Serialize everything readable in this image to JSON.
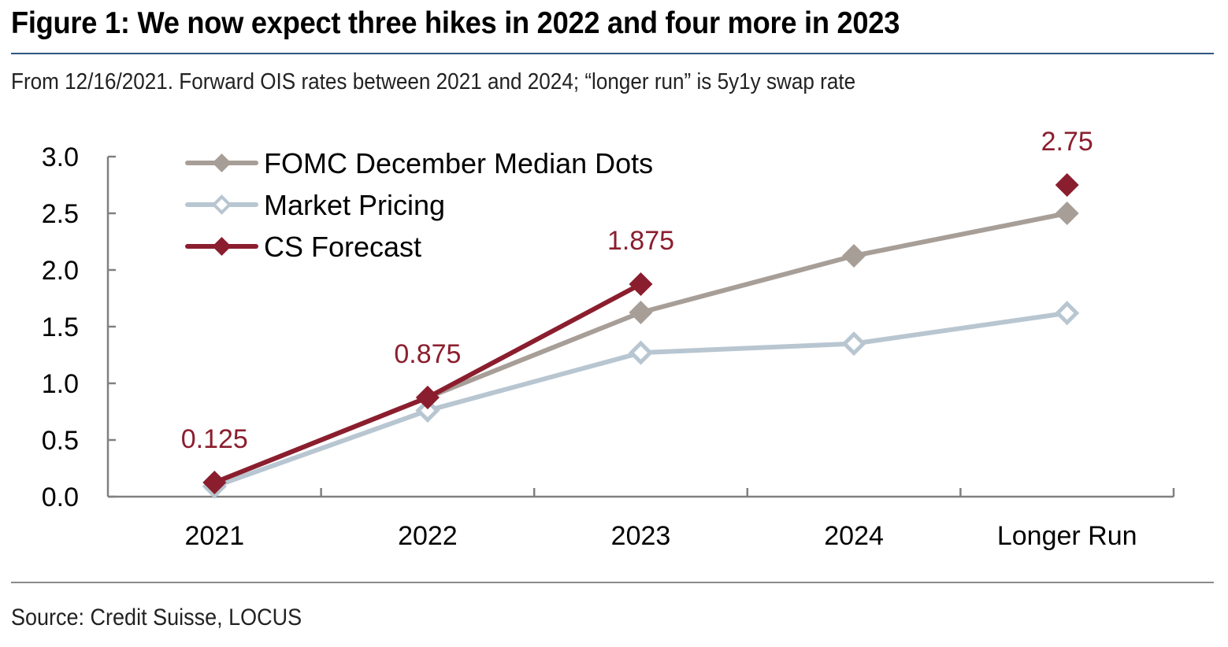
{
  "header": {
    "title": "Figure 1: We now expect three hikes in 2022 and four more in 2023",
    "subtitle": "From 12/16/2021. Forward OIS rates between 2021 and 2024; “longer run” is 5y1y swap rate"
  },
  "footer": {
    "source": "Source: Credit Suisse, LOCUS"
  },
  "colors": {
    "fomc": "#a79e98",
    "market": "#b8c6d1",
    "cs": "#8b1e2e",
    "axis": "#808080",
    "title_rule": "#2f5483"
  },
  "chart_data": {
    "type": "line",
    "title": "Figure 1: We now expect three hikes in 2022 and four more in 2023",
    "subtitle": "From 12/16/2021. Forward OIS rates between 2021 and 2024; “longer run” is 5y1y swap rate",
    "xlabel": "",
    "ylabel": "",
    "categories": [
      "2021",
      "2022",
      "2023",
      "2024",
      "Longer Run"
    ],
    "ylim": [
      0,
      3.0
    ],
    "yticks": [
      0.0,
      0.5,
      1.0,
      1.5,
      2.0,
      2.5,
      3.0
    ],
    "ytick_labels": [
      "0.0",
      "0.5",
      "1.0",
      "1.5",
      "2.0",
      "2.5",
      "3.0"
    ],
    "grid": false,
    "legend_position": "top-left",
    "series": [
      {
        "name": "FOMC December Median Dots",
        "marker": "filled-diamond",
        "color": "#a79e98",
        "values": [
          0.125,
          0.875,
          1.625,
          2.125,
          2.5
        ],
        "connected": [
          true,
          true,
          true,
          true,
          true
        ]
      },
      {
        "name": "Market Pricing",
        "marker": "hollow-diamond",
        "color": "#b8c6d1",
        "values": [
          0.09,
          0.76,
          1.27,
          1.35,
          1.62
        ],
        "connected": [
          true,
          true,
          true,
          true,
          true
        ]
      },
      {
        "name": "CS Forecast",
        "marker": "filled-diamond",
        "color": "#8b1e2e",
        "values": [
          0.125,
          0.875,
          1.875,
          null,
          2.75
        ],
        "connected": [
          true,
          true,
          true,
          false,
          false
        ]
      }
    ],
    "annotations": [
      {
        "series": "CS Forecast",
        "category": "2021",
        "text": "0.125"
      },
      {
        "series": "CS Forecast",
        "category": "2022",
        "text": "0.875"
      },
      {
        "series": "CS Forecast",
        "category": "2023",
        "text": "1.875"
      },
      {
        "series": "CS Forecast",
        "category": "Longer Run",
        "text": "2.75"
      }
    ]
  }
}
